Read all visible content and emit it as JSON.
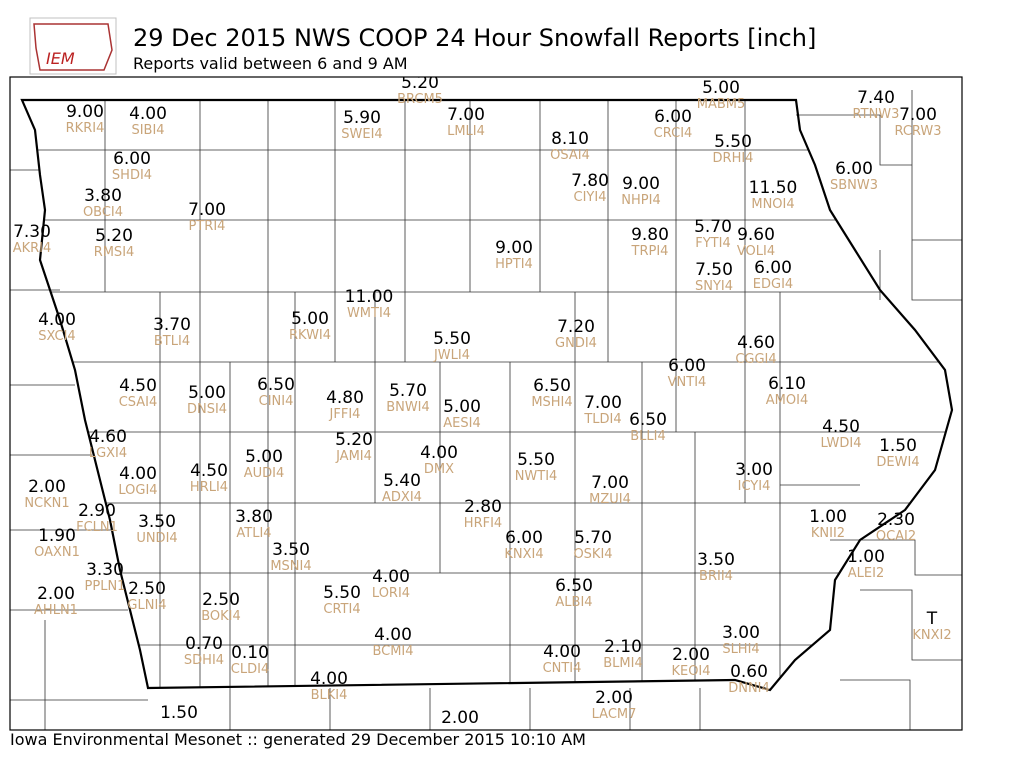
{
  "header": {
    "logo": "IEM",
    "title": "29 Dec 2015 NWS COOP 24 Hour Snowfall Reports [inch]",
    "subtitle": "Reports valid between 6 and 9 AM"
  },
  "footer": "Iowa Environmental Mesonet :: generated 29 December 2015 10:10 AM",
  "stations": [
    {
      "value": "5.20",
      "id": "BRCM5"
    },
    {
      "value": "9.00",
      "id": "RKRI4"
    },
    {
      "value": "4.00",
      "id": "SIBI4"
    },
    {
      "value": "5.90",
      "id": "SWEI4"
    },
    {
      "value": "7.00",
      "id": "LMLI4"
    },
    {
      "value": "8.10",
      "id": "OSAI4"
    },
    {
      "value": "6.00",
      "id": "CRCI4"
    },
    {
      "value": "5.00",
      "id": "MABM5"
    },
    {
      "value": "5.50",
      "id": "DRHI4"
    },
    {
      "value": "7.40",
      "id": "RTNW3"
    },
    {
      "value": "7.00",
      "id": "RCRW3"
    },
    {
      "value": "6.00",
      "id": "SHDI4"
    },
    {
      "value": "7.80",
      "id": "CIYI4"
    },
    {
      "value": "9.00",
      "id": "NHPI4"
    },
    {
      "value": "11.50",
      "id": "MNOI4"
    },
    {
      "value": "6.00",
      "id": "SBNW3"
    },
    {
      "value": "3.80",
      "id": "OBCI4"
    },
    {
      "value": "7.00",
      "id": "PTRI4"
    },
    {
      "value": "7.30",
      "id": "AKRI4"
    },
    {
      "value": "5.20",
      "id": "RMSI4"
    },
    {
      "value": "9.00",
      "id": "HPTI4"
    },
    {
      "value": "9.80",
      "id": "TRPI4"
    },
    {
      "value": "5.70",
      "id": "FYTI4"
    },
    {
      "value": "9.60",
      "id": "VOLI4"
    },
    {
      "value": "7.50",
      "id": "SNYI4"
    },
    {
      "value": "6.00",
      "id": "EDGI4"
    },
    {
      "value": "4.00",
      "id": "SXCI4"
    },
    {
      "value": "3.70",
      "id": "BTLI4"
    },
    {
      "value": "5.00",
      "id": "RKWI4"
    },
    {
      "value": "11.00",
      "id": "WMTI4"
    },
    {
      "value": "5.50",
      "id": "JWLI4"
    },
    {
      "value": "7.20",
      "id": "GNDI4"
    },
    {
      "value": "4.60",
      "id": "CGGI4"
    },
    {
      "value": "6.00",
      "id": "VNTI4"
    },
    {
      "value": "4.50",
      "id": "CSAI4"
    },
    {
      "value": "5.00",
      "id": "DNSI4"
    },
    {
      "value": "6.50",
      "id": "CINI4"
    },
    {
      "value": "4.80",
      "id": "JFFI4"
    },
    {
      "value": "5.70",
      "id": "BNWI4"
    },
    {
      "value": "5.00",
      "id": "AESI4"
    },
    {
      "value": "6.50",
      "id": "MSHI4"
    },
    {
      "value": "7.00",
      "id": "TLDI4"
    },
    {
      "value": "6.50",
      "id": "BLLI4"
    },
    {
      "value": "6.10",
      "id": "AMOI4"
    },
    {
      "value": "4.60",
      "id": "LGXI4"
    },
    {
      "value": "5.20",
      "id": "JAMI4"
    },
    {
      "value": "4.00",
      "id": "DMX"
    },
    {
      "value": "5.50",
      "id": "NWTI4"
    },
    {
      "value": "4.50",
      "id": "LWDI4"
    },
    {
      "value": "1.50",
      "id": "DEWI4"
    },
    {
      "value": "4.00",
      "id": "LOGI4"
    },
    {
      "value": "4.50",
      "id": "HRLI4"
    },
    {
      "value": "5.00",
      "id": "AUDI4"
    },
    {
      "value": "5.40",
      "id": "ADXI4"
    },
    {
      "value": "7.00",
      "id": "MZUI4"
    },
    {
      "value": "3.00",
      "id": "ICYI4"
    },
    {
      "value": "2.00",
      "id": "NCKN1"
    },
    {
      "value": "2.90",
      "id": "FCLN1"
    },
    {
      "value": "3.50",
      "id": "UNDI4"
    },
    {
      "value": "3.80",
      "id": "ATLI4"
    },
    {
      "value": "2.80",
      "id": "HRFI4"
    },
    {
      "value": "6.00",
      "id": "KNXI4"
    },
    {
      "value": "5.70",
      "id": "OSKI4"
    },
    {
      "value": "1.00",
      "id": "KNII2"
    },
    {
      "value": "2.30",
      "id": "OCAI2"
    },
    {
      "value": "1.90",
      "id": "OAXN1"
    },
    {
      "value": "3.50",
      "id": "MSNI4"
    },
    {
      "value": "3.50",
      "id": "BRII4"
    },
    {
      "value": "1.00",
      "id": "ALEI2"
    },
    {
      "value": "3.30",
      "id": "PPLN1"
    },
    {
      "value": "2.50",
      "id": "GLNI4"
    },
    {
      "value": "2.00",
      "id": "AHLN1"
    },
    {
      "value": "2.50",
      "id": "BOKI4"
    },
    {
      "value": "5.50",
      "id": "CRTI4"
    },
    {
      "value": "4.00",
      "id": "LORI4"
    },
    {
      "value": "6.50",
      "id": "ALBI4"
    },
    {
      "value": "T",
      "id": "KNXI2"
    },
    {
      "value": "0.70",
      "id": "SDHI4"
    },
    {
      "value": "0.10",
      "id": "CLDI4"
    },
    {
      "value": "4.00",
      "id": "BCMI4"
    },
    {
      "value": "4.00",
      "id": "CNTI4"
    },
    {
      "value": "2.10",
      "id": "BLMI4"
    },
    {
      "value": "3.00",
      "id": "SLHI4"
    },
    {
      "value": "2.00",
      "id": "KEOI4"
    },
    {
      "value": "0.60",
      "id": "DNNI4"
    },
    {
      "value": "4.00",
      "id": "BLKI4"
    },
    {
      "value": "2.00",
      "id": "LACM7"
    },
    {
      "value": "1.50"
    },
    {
      "value": "2.00"
    }
  ]
}
